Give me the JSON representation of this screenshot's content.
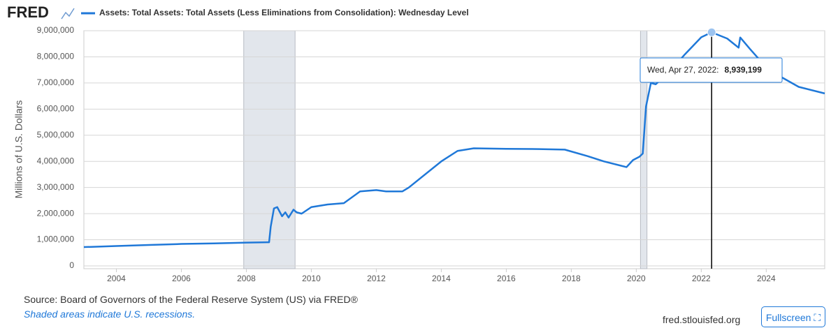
{
  "brand": "FRED",
  "chart_data": {
    "type": "line",
    "y_label": "Millions of U.S. Dollars",
    "series": [
      {
        "name": "Assets: Total Assets: Total Assets (Less Eliminations from Consolidation): Wednesday Level",
        "color": "#1f78d8",
        "x": [
          2003.0,
          2004.0,
          2005.0,
          2006.0,
          2007.0,
          2008.0,
          2008.7,
          2008.75,
          2008.85,
          2008.95,
          2009.1,
          2009.2,
          2009.3,
          2009.45,
          2009.55,
          2009.7,
          2010.0,
          2010.5,
          2011.0,
          2011.5,
          2012.0,
          2012.3,
          2012.8,
          2013.0,
          2014.0,
          2014.5,
          2015.0,
          2016.0,
          2017.0,
          2017.8,
          2018.5,
          2019.0,
          2019.7,
          2019.9,
          2020.1,
          2020.2,
          2020.3,
          2020.45,
          2020.6,
          2021.0,
          2021.5,
          2022.0,
          2022.32,
          2022.8,
          2023.0,
          2023.15,
          2023.2,
          2023.5,
          2024.0,
          2024.5,
          2025.0,
          2025.8
        ],
        "values": [
          720000,
          760000,
          800000,
          840000,
          860000,
          890000,
          905000,
          1500000,
          2200000,
          2250000,
          1900000,
          2050000,
          1850000,
          2150000,
          2050000,
          2000000,
          2250000,
          2350000,
          2400000,
          2850000,
          2900000,
          2850000,
          2850000,
          3000000,
          4000000,
          4400000,
          4500000,
          4480000,
          4470000,
          4450000,
          4200000,
          4000000,
          3780000,
          4050000,
          4180000,
          4300000,
          6100000,
          7000000,
          6950000,
          7400000,
          8100000,
          8750000,
          8939199,
          8700000,
          8500000,
          8350000,
          8740000,
          8300000,
          7600000,
          7200000,
          6850000,
          6600000
        ]
      }
    ],
    "recessions": [
      [
        2007.92,
        2009.5
      ],
      [
        2020.13,
        2020.33
      ]
    ],
    "xlim": [
      2003.0,
      2025.8
    ],
    "xticks": [
      2004,
      2006,
      2008,
      2010,
      2012,
      2014,
      2016,
      2018,
      2020,
      2022,
      2024
    ],
    "ylim": [
      0,
      9000000
    ],
    "yticks": [
      0,
      {
        "value": 1000000,
        "label": "1,000,000"
      },
      {
        "value": 2000000,
        "label": "2,000,000"
      },
      {
        "value": 3000000,
        "label": "3,000,000"
      },
      {
        "value": 4000000,
        "label": "4,000,000"
      },
      {
        "value": 5000000,
        "label": "5,000,000"
      },
      {
        "value": 6000000,
        "label": "6,000,000"
      },
      {
        "value": 7000000,
        "label": "7,000,000"
      },
      {
        "value": 8000000,
        "label": "8,000,000"
      },
      {
        "value": 9000000,
        "label": "9,000,000"
      }
    ],
    "grid": true,
    "tooltip": {
      "x": 2022.32,
      "date": "Wed, Apr 27, 2022:",
      "value": 8939199,
      "value_label": "8,939,199"
    }
  },
  "footer": {
    "source": "Source: Board of Governors of the Federal Reserve System (US) via FRED®",
    "note": "Shaded areas indicate U.S. recessions.",
    "site": "fred.stlouisfed.org",
    "button": "Fullscreen"
  }
}
